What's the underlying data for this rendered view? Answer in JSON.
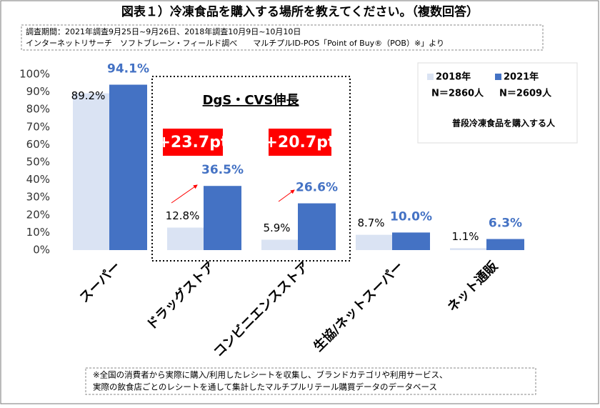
{
  "chart_data": {
    "type": "bar",
    "title": "図表１）冷凍食品を購入する場所を教えてください。（複数回答）",
    "subtitle": [
      "調査期間：2021年調査9月25日~9月26日、2018年調査10月9日~10月10日",
      "インターネットリサーチ　ソフトブレーン・フィールド調べ　　マルチプルID-POS「Point of Buy®（POB）※」より"
    ],
    "categories": [
      "スーパー",
      "ドラッグストア",
      "コンビニエンスストア",
      "生協/ネットスーパー",
      "ネット通販"
    ],
    "series": [
      {
        "name": "2018年",
        "sample": "N＝2860人",
        "color": "#dae3f3",
        "label_color": "#000000",
        "values": [
          89.2,
          12.8,
          5.9,
          8.7,
          1.1
        ],
        "value_labels": [
          "89.2%",
          "12.8%",
          "5.9%",
          "8.7%",
          "1.1%"
        ]
      },
      {
        "name": "2021年",
        "sample": "N＝2609人",
        "color": "#4472c4",
        "label_color": "#4472c4",
        "values": [
          94.1,
          36.5,
          26.6,
          10.0,
          6.3
        ],
        "value_labels": [
          "94.1%",
          "36.5%",
          "26.6%",
          "10.0%",
          "6.3%"
        ]
      }
    ],
    "legend_note": "普段冷凍食品を購入する人",
    "highlight_title": "DgS・CVS伸長",
    "deltas": [
      "+23.7pt",
      "+20.7pt"
    ],
    "footnote": [
      "※全国の消費者から実際に購入/利用したレシートを収集し、ブランドカテゴリや利用サービス、",
      "実際の飲食店ごとのレシートを通して集計したマルチプルリテール購買データのデータベース"
    ],
    "ylim": [
      0,
      100
    ],
    "yticks": [
      {
        "value": 0,
        "label": "0%"
      },
      {
        "value": 10,
        "label": "10%"
      },
      {
        "value": 20,
        "label": "20%"
      },
      {
        "value": 30,
        "label": "30%"
      },
      {
        "value": 40,
        "label": "40%"
      },
      {
        "value": 50,
        "label": "50%"
      },
      {
        "value": 60,
        "label": "60%"
      },
      {
        "value": 70,
        "label": "70%"
      },
      {
        "value": 80,
        "label": "80%"
      },
      {
        "value": 90,
        "label": "90%"
      },
      {
        "value": 100,
        "label": "100%"
      }
    ]
  }
}
